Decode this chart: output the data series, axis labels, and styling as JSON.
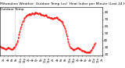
{
  "title": "Milwaukee Weather  Outdoor Temp (vs)  Heat Index per Minute (Last 24 Hours)",
  "subtitle": "Outdoor Temp",
  "bg_color": "#ffffff",
  "line_color": "#ff0000",
  "line_style": "--",
  "line_width": 0.6,
  "marker": ".",
  "marker_size": 0.8,
  "ylim": [
    18,
    88
  ],
  "yticks": [
    20,
    30,
    40,
    50,
    60,
    70,
    80
  ],
  "ylabel_fontsize": 3.0,
  "xlabel_fontsize": 2.5,
  "title_fontsize": 3.2,
  "vline_x": 22,
  "vline_color": "#999999",
  "vline_style": ":",
  "x_values": [
    0,
    1,
    2,
    3,
    4,
    5,
    6,
    7,
    8,
    9,
    10,
    11,
    12,
    13,
    14,
    15,
    16,
    17,
    18,
    19,
    20,
    21,
    22,
    23,
    24,
    25,
    26,
    27,
    28,
    29,
    30,
    31,
    32,
    33,
    34,
    35,
    36,
    37,
    38,
    39,
    40,
    41,
    42,
    43,
    44,
    45,
    46,
    47,
    48,
    49,
    50,
    51,
    52,
    53,
    54,
    55,
    56,
    57,
    58,
    59,
    60,
    61,
    62,
    63,
    64,
    65,
    66,
    67,
    68,
    69,
    70,
    71,
    72,
    73,
    74,
    75,
    76,
    77,
    78,
    79,
    80,
    81,
    82,
    83,
    84,
    85,
    86,
    87,
    88,
    89,
    90,
    91,
    92,
    93,
    94,
    95,
    96,
    97,
    98,
    99,
    100,
    101,
    102,
    103,
    104,
    105,
    106,
    107,
    108,
    109,
    110,
    111,
    112,
    113,
    114,
    115,
    116,
    117,
    118,
    119,
    120,
    121,
    122,
    123,
    124,
    125,
    126,
    127,
    128,
    129,
    130,
    131,
    132,
    133,
    134,
    135,
    136,
    137,
    138,
    139
  ],
  "y_values": [
    32,
    31,
    30,
    30,
    29,
    29,
    28,
    28,
    27,
    27,
    28,
    29,
    30,
    29,
    28,
    28,
    27,
    27,
    27,
    28,
    29,
    30,
    31,
    33,
    35,
    37,
    40,
    44,
    48,
    52,
    56,
    60,
    63,
    66,
    68,
    70,
    72,
    73,
    74,
    75,
    76,
    77,
    77,
    78,
    78,
    77,
    78,
    79,
    79,
    78,
    78,
    79,
    80,
    80,
    79,
    79,
    78,
    79,
    79,
    78,
    77,
    77,
    76,
    76,
    75,
    75,
    76,
    76,
    75,
    74,
    73,
    73,
    73,
    72,
    72,
    72,
    72,
    71,
    71,
    72,
    72,
    72,
    73,
    73,
    72,
    71,
    70,
    70,
    69,
    68,
    67,
    66,
    64,
    62,
    60,
    57,
    54,
    50,
    46,
    42,
    38,
    35,
    32,
    30,
    29,
    28,
    27,
    27,
    26,
    27,
    27,
    28,
    28,
    29,
    29,
    28,
    28,
    27,
    27,
    26,
    25,
    25,
    25,
    24,
    24,
    24,
    23,
    23,
    23,
    23,
    23,
    23,
    24,
    25,
    26,
    28,
    30,
    32,
    34,
    36
  ],
  "xtick_labels": [
    "12a",
    "",
    "",
    "",
    "",
    "",
    "2a",
    "",
    "",
    "",
    "",
    "",
    "4a",
    "",
    "",
    "",
    "",
    "",
    "6a",
    "",
    "",
    "",
    "",
    "",
    "8a",
    "",
    "",
    "",
    "",
    "",
    "10a",
    "",
    "",
    "",
    "",
    "",
    "12p",
    "",
    "",
    "",
    "",
    "",
    "2p",
    "",
    "",
    "",
    "",
    "",
    "4p",
    "",
    "",
    "",
    "",
    "",
    "6p",
    "",
    "",
    "",
    "",
    "",
    "8p",
    "",
    "",
    "",
    "",
    "",
    "10p",
    "",
    "",
    "",
    "",
    "",
    "12a",
    "",
    "",
    "",
    "",
    "",
    "2a",
    "",
    "",
    "",
    "",
    "",
    "4a",
    "",
    "",
    "",
    "",
    "",
    "6a",
    "",
    "",
    "",
    "",
    "",
    "8a",
    "",
    "",
    "",
    "",
    "",
    "10a",
    "",
    "",
    "",
    "",
    "",
    "12p",
    "",
    "",
    "",
    "",
    "",
    "2p",
    "",
    "",
    "",
    "",
    "",
    "4p",
    "",
    "",
    "",
    "",
    "",
    "6p",
    "",
    "",
    "",
    "",
    "",
    "8p",
    "",
    "",
    "",
    "",
    "",
    "10p",
    "",
    "",
    "",
    "",
    "",
    "12a",
    "",
    "",
    "",
    "",
    "",
    "2a"
  ],
  "figsize": [
    1.6,
    0.87
  ],
  "dpi": 100
}
